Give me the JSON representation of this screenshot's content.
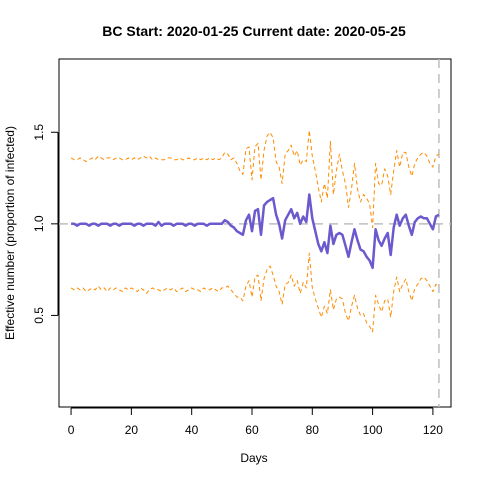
{
  "chart_data": {
    "type": "line",
    "title": "BC Start:  2020-01-25   Current date:  2020-05-25",
    "xlabel": "Days",
    "ylabel": "Effective number (proportion of infected)",
    "xlim": [
      -4,
      126
    ],
    "ylim": [
      0,
      1.9
    ],
    "x_ticks": [
      0,
      20,
      40,
      60,
      80,
      100,
      120
    ],
    "x_tick_labels": [
      "0",
      "20",
      "40",
      "60",
      "80",
      "100",
      "120"
    ],
    "y_ticks": [
      0.5,
      1.0,
      1.5
    ],
    "y_tick_labels": [
      "0.5",
      "1.0",
      "1.5"
    ],
    "reference_hline": {
      "y": 1.0,
      "color": "#bebebe",
      "style": "dashed"
    },
    "reference_vline": {
      "x": 122,
      "color": "#bebebe",
      "style": "dashed"
    },
    "x": [
      0,
      1,
      2,
      3,
      4,
      5,
      6,
      7,
      8,
      9,
      10,
      11,
      12,
      13,
      14,
      15,
      16,
      17,
      18,
      19,
      20,
      21,
      22,
      23,
      24,
      25,
      26,
      27,
      28,
      29,
      30,
      31,
      32,
      33,
      34,
      35,
      36,
      37,
      38,
      39,
      40,
      41,
      42,
      43,
      44,
      45,
      46,
      47,
      48,
      49,
      50,
      51,
      52,
      53,
      54,
      55,
      56,
      57,
      58,
      59,
      60,
      61,
      62,
      63,
      64,
      65,
      66,
      67,
      68,
      69,
      70,
      71,
      72,
      73,
      74,
      75,
      76,
      77,
      78,
      79,
      80,
      81,
      82,
      83,
      84,
      85,
      86,
      87,
      88,
      89,
      90,
      91,
      92,
      93,
      94,
      95,
      96,
      97,
      98,
      99,
      100,
      101,
      102,
      103,
      104,
      105,
      106,
      107,
      108,
      109,
      110,
      111,
      112,
      113,
      114,
      115,
      116,
      117,
      118,
      119,
      120,
      121,
      122
    ],
    "series": [
      {
        "color": "#6a5acd",
        "style": "solid",
        "width": 2.5,
        "values": [
          1.0,
          1.0,
          0.99,
          1.0,
          1.0,
          1.0,
          0.99,
          1.0,
          1.0,
          0.99,
          1.0,
          1.0,
          1.0,
          0.99,
          1.0,
          1.0,
          0.99,
          1.0,
          1.0,
          1.0,
          1.0,
          0.99,
          1.0,
          1.0,
          0.99,
          1.0,
          1.0,
          1.0,
          0.99,
          1.01,
          0.99,
          1.0,
          1.0,
          1.0,
          0.99,
          1.0,
          1.0,
          1.0,
          0.99,
          1.0,
          1.0,
          0.99,
          1.0,
          1.0,
          1.0,
          0.99,
          1.0,
          1.0,
          1.0,
          1.0,
          1.0,
          1.02,
          1.01,
          0.99,
          0.98,
          0.96,
          0.95,
          0.94,
          1.02,
          1.05,
          0.96,
          1.07,
          1.08,
          0.94,
          1.1,
          1.12,
          1.13,
          1.14,
          1.05,
          1.0,
          0.92,
          1.02,
          1.05,
          1.08,
          1.03,
          1.06,
          1.0,
          1.04,
          1.01,
          1.16,
          1.03,
          0.96,
          0.89,
          0.85,
          0.9,
          0.84,
          0.99,
          0.89,
          0.94,
          0.95,
          0.94,
          0.88,
          0.82,
          0.9,
          0.97,
          0.91,
          0.86,
          0.85,
          0.82,
          0.8,
          0.76,
          0.97,
          0.91,
          0.88,
          0.92,
          0.95,
          0.83,
          0.98,
          1.05,
          0.99,
          1.03,
          1.05,
          0.99,
          0.94,
          1.01,
          1.03,
          1.04,
          1.03,
          1.03,
          1.0,
          0.97,
          1.04,
          1.05
        ]
      },
      {
        "color": "#ff8c00",
        "style": "dashed",
        "width": 1,
        "values": [
          1.36,
          1.35,
          1.35,
          1.36,
          1.35,
          1.34,
          1.35,
          1.36,
          1.35,
          1.37,
          1.36,
          1.35,
          1.36,
          1.36,
          1.35,
          1.36,
          1.36,
          1.35,
          1.35,
          1.36,
          1.35,
          1.36,
          1.35,
          1.36,
          1.37,
          1.36,
          1.37,
          1.35,
          1.36,
          1.35,
          1.35,
          1.35,
          1.36,
          1.36,
          1.35,
          1.35,
          1.36,
          1.35,
          1.35,
          1.36,
          1.35,
          1.35,
          1.36,
          1.35,
          1.36,
          1.35,
          1.36,
          1.35,
          1.36,
          1.35,
          1.36,
          1.39,
          1.38,
          1.35,
          1.36,
          1.33,
          1.29,
          1.27,
          1.41,
          1.42,
          1.24,
          1.42,
          1.44,
          1.24,
          1.4,
          1.48,
          1.5,
          1.47,
          1.34,
          1.31,
          1.22,
          1.38,
          1.4,
          1.43,
          1.37,
          1.4,
          1.32,
          1.35,
          1.34,
          1.51,
          1.37,
          1.29,
          1.2,
          1.12,
          1.22,
          1.14,
          1.45,
          1.16,
          1.29,
          1.38,
          1.29,
          1.22,
          1.09,
          1.19,
          1.33,
          1.19,
          1.12,
          1.16,
          1.14,
          1.11,
          0.98,
          1.33,
          1.22,
          1.21,
          1.3,
          1.26,
          1.16,
          1.29,
          1.4,
          1.31,
          1.39,
          1.39,
          1.31,
          1.26,
          1.33,
          1.36,
          1.38,
          1.39,
          1.37,
          1.33,
          1.31,
          1.37,
          1.38
        ]
      },
      {
        "color": "#ff8c00",
        "style": "dashed",
        "width": 1,
        "values": [
          0.65,
          0.64,
          0.65,
          0.64,
          0.65,
          0.63,
          0.64,
          0.65,
          0.64,
          0.66,
          0.64,
          0.65,
          0.63,
          0.65,
          0.64,
          0.65,
          0.64,
          0.63,
          0.65,
          0.64,
          0.65,
          0.64,
          0.63,
          0.65,
          0.64,
          0.62,
          0.64,
          0.65,
          0.64,
          0.64,
          0.63,
          0.64,
          0.65,
          0.64,
          0.65,
          0.63,
          0.64,
          0.65,
          0.63,
          0.64,
          0.65,
          0.64,
          0.64,
          0.63,
          0.65,
          0.64,
          0.64,
          0.65,
          0.64,
          0.63,
          0.65,
          0.65,
          0.66,
          0.64,
          0.62,
          0.6,
          0.6,
          0.58,
          0.66,
          0.69,
          0.6,
          0.71,
          0.72,
          0.58,
          0.7,
          0.75,
          0.77,
          0.72,
          0.66,
          0.63,
          0.56,
          0.67,
          0.68,
          0.72,
          0.66,
          0.69,
          0.62,
          0.68,
          0.65,
          0.84,
          0.65,
          0.59,
          0.54,
          0.49,
          0.55,
          0.51,
          0.64,
          0.53,
          0.59,
          0.6,
          0.59,
          0.51,
          0.47,
          0.55,
          0.61,
          0.54,
          0.5,
          0.51,
          0.46,
          0.44,
          0.41,
          0.61,
          0.56,
          0.52,
          0.58,
          0.59,
          0.49,
          0.63,
          0.71,
          0.63,
          0.67,
          0.7,
          0.63,
          0.58,
          0.65,
          0.67,
          0.7,
          0.71,
          0.69,
          0.66,
          0.63,
          0.67,
          0.66
        ]
      }
    ]
  }
}
